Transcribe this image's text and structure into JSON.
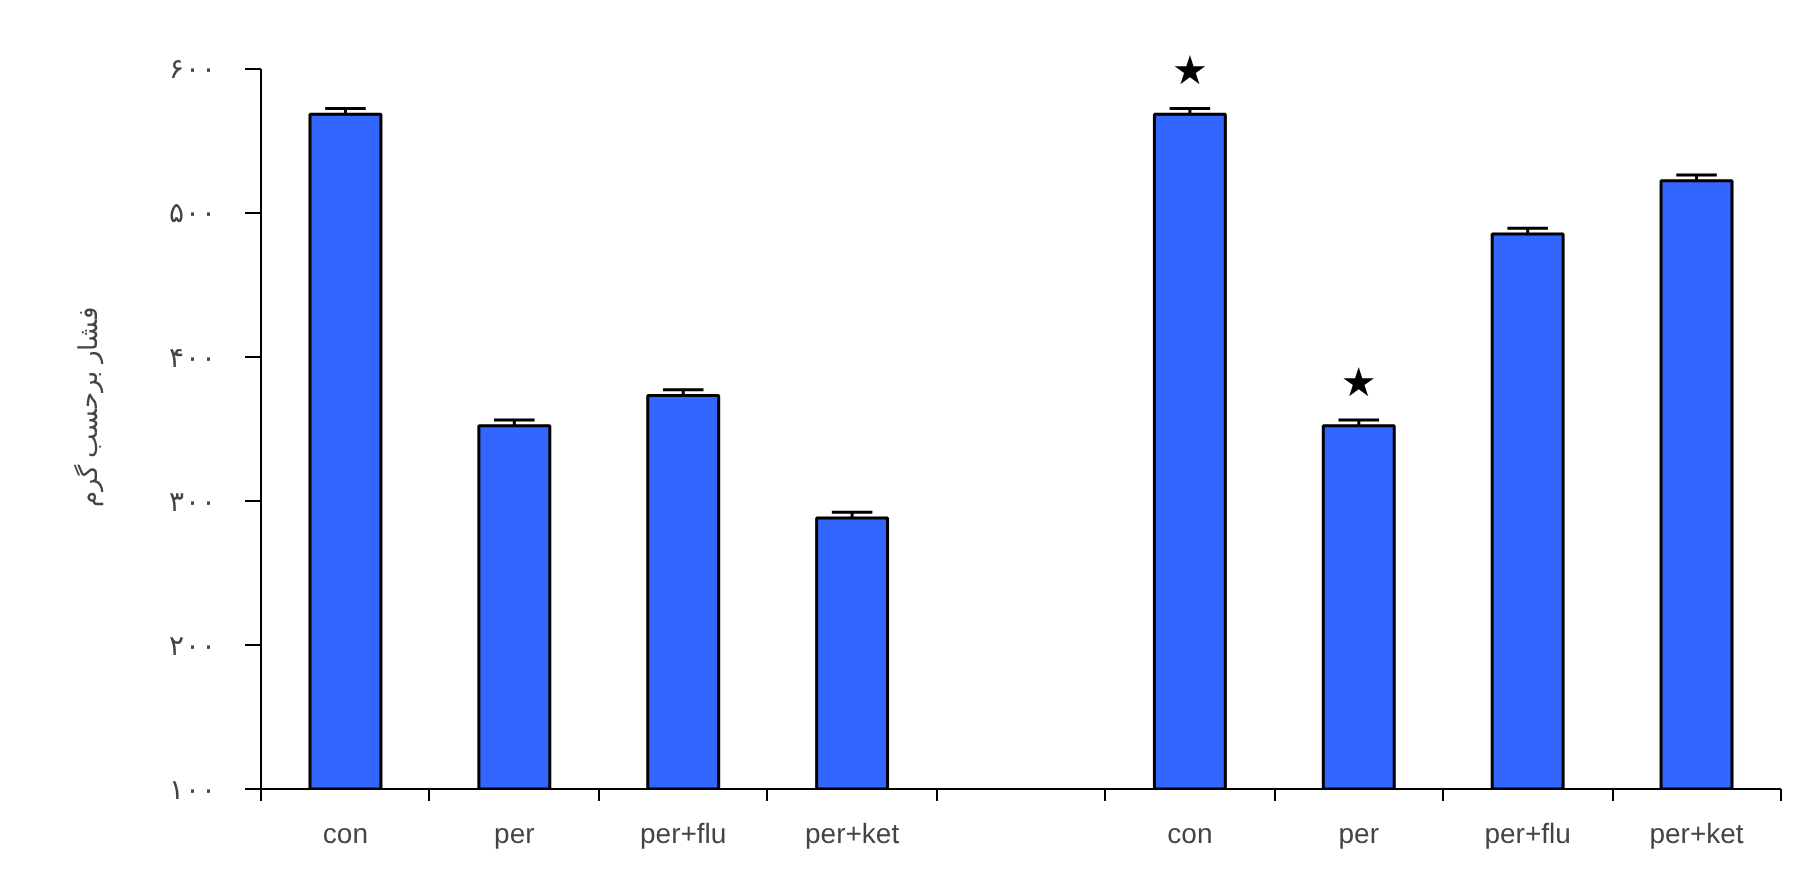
{
  "chart_data": {
    "type": "bar",
    "ylabel": "فشار برحسب گرم",
    "categories": [
      "con",
      "per",
      "per+flu",
      "per+ket",
      null,
      "con",
      "per",
      "per+flu",
      "per+ket"
    ],
    "values": [
      568,
      352,
      373,
      288,
      null,
      568,
      352,
      485,
      522
    ],
    "errors": [
      4,
      4,
      4,
      4,
      null,
      4,
      4,
      4,
      4
    ],
    "value_labels": [
      null,
      null,
      null,
      null,
      null,
      "★",
      "★",
      null,
      null
    ],
    "color": "#3366ff",
    "ylim": [
      100,
      600
    ],
    "yticks": [
      {
        "value": 100,
        "label": "۱۰۰"
      },
      {
        "value": 200,
        "label": "۲۰۰"
      },
      {
        "value": 300,
        "label": "۳۰۰"
      },
      {
        "value": 400,
        "label": "۴۰۰"
      },
      {
        "value": 500,
        "label": "۵۰۰"
      },
      {
        "value": 600,
        "label": "۶۰۰"
      }
    ],
    "grid": false
  }
}
